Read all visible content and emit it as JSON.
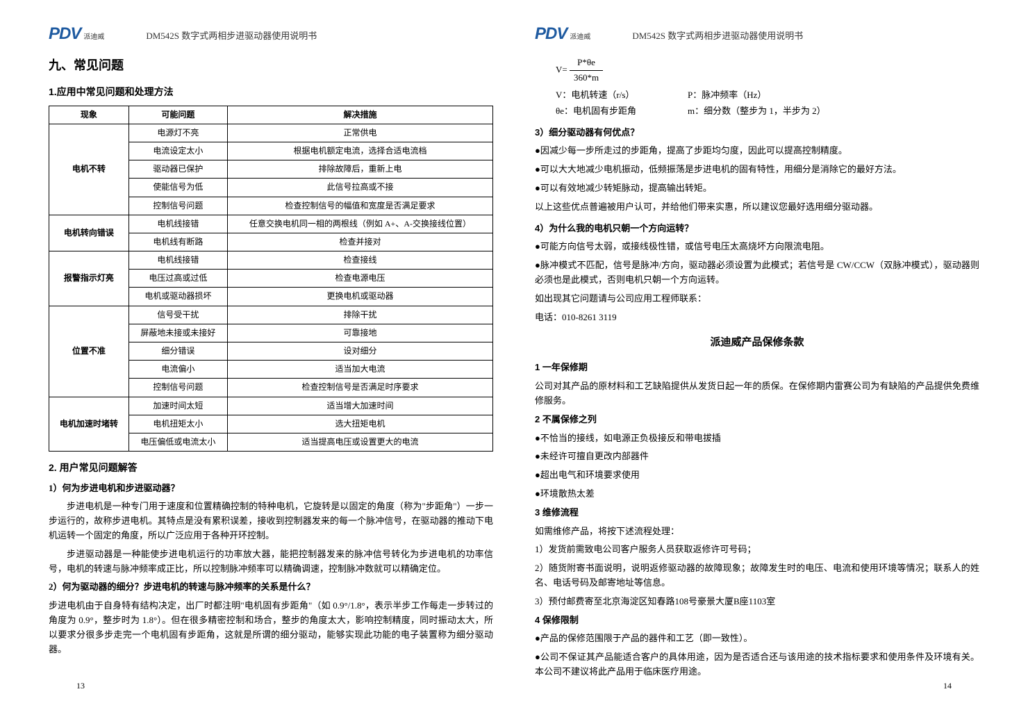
{
  "header": {
    "logo": "PDV",
    "logo_sub": "派迪威",
    "doc_title": "DM542S 数字式两相步进驱动器使用说明书"
  },
  "left": {
    "h1": "九、常见问题",
    "h2_1": "1.应用中常见问题和处理方法",
    "table": {
      "headers": [
        "现象",
        "可能问题",
        "解决措施"
      ],
      "groups": [
        {
          "phenomenon": "电机不转",
          "rows": [
            [
              "电源灯不亮",
              "正常供电"
            ],
            [
              "电流设定太小",
              "根据电机额定电流，选择合适电流档"
            ],
            [
              "驱动器已保护",
              "排除故障后，重新上电"
            ],
            [
              "使能信号为低",
              "此信号拉高或不接"
            ],
            [
              "控制信号问题",
              "检查控制信号的幅值和宽度是否满足要求"
            ]
          ]
        },
        {
          "phenomenon": "电机转向错误",
          "rows": [
            [
              "电机线接错",
              "任意交换电机同一相的两根线（例如 A+、A-交换接线位置）"
            ],
            [
              "电机线有断路",
              "检查并接对"
            ]
          ]
        },
        {
          "phenomenon": "报警指示灯亮",
          "rows": [
            [
              "电机线接错",
              "检查接线"
            ],
            [
              "电压过高或过低",
              "检查电源电压"
            ],
            [
              "电机或驱动器损坏",
              "更换电机或驱动器"
            ]
          ]
        },
        {
          "phenomenon": "位置不准",
          "rows": [
            [
              "信号受干扰",
              "排除干扰"
            ],
            [
              "屏蔽地未接或未接好",
              "可靠接地"
            ],
            [
              "细分错误",
              "设对细分"
            ],
            [
              "电流偏小",
              "适当加大电流"
            ],
            [
              "控制信号问题",
              "检查控制信号是否满足时序要求"
            ]
          ]
        },
        {
          "phenomenon": "电机加速时堵转",
          "rows": [
            [
              "加速时间太短",
              "适当增大加速时间"
            ],
            [
              "电机扭矩太小",
              "选大扭矩电机"
            ],
            [
              "电压偏低或电流太小",
              "适当提高电压或设置更大的电流"
            ]
          ]
        }
      ]
    },
    "h2_2": "2. 用户常见问题解答",
    "q1_title": "1）何为步进电机和步进驱动器？",
    "q1_p1": "步进电机是一种专门用于速度和位置精确控制的特种电机，它旋转是以固定的角度（称为\"步距角\"）一步一步运行的，故称步进电机。其特点是没有累积误差，接收到控制器发来的每一个脉冲信号，在驱动器的推动下电机运转一个固定的角度，所以广泛应用于各种开环控制。",
    "q1_p2": "步进驱动器是一种能使步进电机运行的功率放大器，能把控制器发来的脉冲信号转化为步进电机的功率信号，电机的转速与脉冲频率成正比，所以控制脉冲频率可以精确调速，控制脉冲数就可以精确定位。",
    "q2_title": "2）何为驱动器的细分？步进电机的转速与脉冲频率的关系是什么？",
    "q2_p1": "步进电机由于自身特有结构决定，出厂时都注明\"电机固有步距角\"（如 0.9°/1.8°，表示半步工作每走一步转过的角度为 0.9°，整步时为 1.8°）。但在很多精密控制和场合，整步的角度太大，影响控制精度，同时振动太大，所以要求分很多步走完一个电机固有步距角，这就是所谓的细分驱动，能够实现此功能的电子装置称为细分驱动器。",
    "page_num": "13"
  },
  "right": {
    "formula_v": "V=",
    "formula_num": "P*θe",
    "formula_den": "360*m",
    "def_v": "V：电机转速（r/s）",
    "def_p": "P：脉冲频率（Hz）",
    "def_theta": "θe：电机固有步距角",
    "def_m": "m：细分数（整步为 1，半步为 2）",
    "q3_title": "3）细分驱动器有何优点？",
    "q3_b1": "●因减少每一步所走过的步距角，提高了步距均匀度，因此可以提高控制精度。",
    "q3_b2": "●可以大大地减少电机振动，低频振荡是步进电机的固有特性，用细分是消除它的最好方法。",
    "q3_b3": "●可以有效地减少转矩脉动，提高输出转矩。",
    "q3_p1": "以上这些优点普遍被用户认可，并给他们带来实惠，所以建议您最好选用细分驱动器。",
    "q4_title": "4）为什么我的电机只朝一个方向运转？",
    "q4_b1": "●可能方向信号太弱，或接线极性错，或信号电压太高烧坏方向限流电阻。",
    "q4_b2": "●脉冲模式不匹配，信号是脉冲/方向，驱动器必须设置为此模式；若信号是 CW/CCW（双脉冲模式），驱动器则必须也是此模式，否则电机只朝一个方向运转。",
    "contact_p1": "如出现其它问题请与公司应用工程师联系：",
    "contact_p2": "电话：010-8261 3119",
    "warranty_title": "派迪威产品保修条款",
    "w1_title": "1 一年保修期",
    "w1_p": "公司对其产品的原材料和工艺缺陷提供从发货日起一年的质保。在保修期内雷赛公司为有缺陷的产品提供免费维修服务。",
    "w2_title": "2 不属保修之列",
    "w2_b1": "●不恰当的接线，如电源正负极接反和带电拔插",
    "w2_b2": "●未经许可擅自更改内部器件",
    "w2_b3": "●超出电气和环境要求使用",
    "w2_b4": "●环境散热太差",
    "w3_title": "3 维修流程",
    "w3_p": "如需维修产品，将按下述流程处理：",
    "w3_s1": "1）发货前需致电公司客户服务人员获取返修许可号码；",
    "w3_s2": "2）随货附寄书面说明，说明返修驱动器的故障现象；故障发生时的电压、电流和使用环境等情况；联系人的姓名、电话号码及邮寄地址等信息。",
    "w3_s3": "3）预付邮费寄至北京海淀区知春路108号豪景大厦B座1103室",
    "w4_title": "4 保修限制",
    "w4_b1": "●产品的保修范围限于产品的器件和工艺（即一致性）。",
    "w4_b2": "●公司不保证其产品能适合客户的具体用途，因为是否适合还与该用途的技术指标要求和使用条件及环境有关。本公司不建议将此产品用于临床医疗用途。",
    "page_num": "14"
  }
}
